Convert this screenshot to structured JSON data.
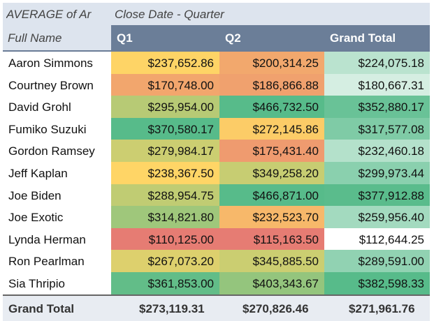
{
  "pivot": {
    "title": "AVERAGE of Amount",
    "title_visible": "AVERAGE of Ar",
    "column_field_label": "Close Date - Quarter",
    "row_field_label": "Full Name",
    "columns": [
      "Q1",
      "Q2",
      "Grand Total"
    ],
    "rows": [
      {
        "name": "Aaron Simmons",
        "q1": "$237,652.86",
        "q2": "$200,314.25",
        "total": "$224,075.18"
      },
      {
        "name": "Courtney Brown",
        "q1": "$170,748.00",
        "q2": "$186,866.88",
        "total": "$180,667.31"
      },
      {
        "name": "David Grohl",
        "q1": "$295,954.00",
        "q2": "$466,732.50",
        "total": "$352,880.17"
      },
      {
        "name": "Fumiko Suzuki",
        "q1": "$370,580.17",
        "q2": "$272,145.86",
        "total": "$317,577.08"
      },
      {
        "name": "Gordon Ramsey",
        "q1": "$279,984.17",
        "q2": "$175,431.40",
        "total": "$232,460.18"
      },
      {
        "name": "Jeff Kaplan",
        "q1": "$238,367.50",
        "q2": "$349,258.20",
        "total": "$299,973.44"
      },
      {
        "name": "Joe Biden",
        "q1": "$288,954.75",
        "q2": "$466,871.00",
        "total": "$377,912.88"
      },
      {
        "name": "Joe Exotic",
        "q1": "$314,821.80",
        "q2": "$232,523.70",
        "total": "$259,956.40"
      },
      {
        "name": "Lynda Herman",
        "q1": "$110,125.00",
        "q2": "$115,163.50",
        "total": "$112,644.25"
      },
      {
        "name": "Ron Pearlman",
        "q1": "$267,073.20",
        "q2": "$345,885.50",
        "total": "$289,591.00"
      },
      {
        "name": "Sia Thripio",
        "q1": "$361,853.00",
        "q2": "$403,343.67",
        "total": "$382,598.33"
      }
    ],
    "grand_total": {
      "label": "Grand Total",
      "q1": "$273,119.31",
      "q2": "$270,826.46",
      "total": "$271,961.76"
    }
  },
  "colors": {
    "header_bg": "#dde4ee",
    "column_header_bg": "#6b7e98",
    "heat_low": "#e67c73",
    "heat_mid": "#ffd666",
    "heat_high": "#57bb8a",
    "total_low": "#ffffff",
    "total_high": "#57bb8a"
  }
}
